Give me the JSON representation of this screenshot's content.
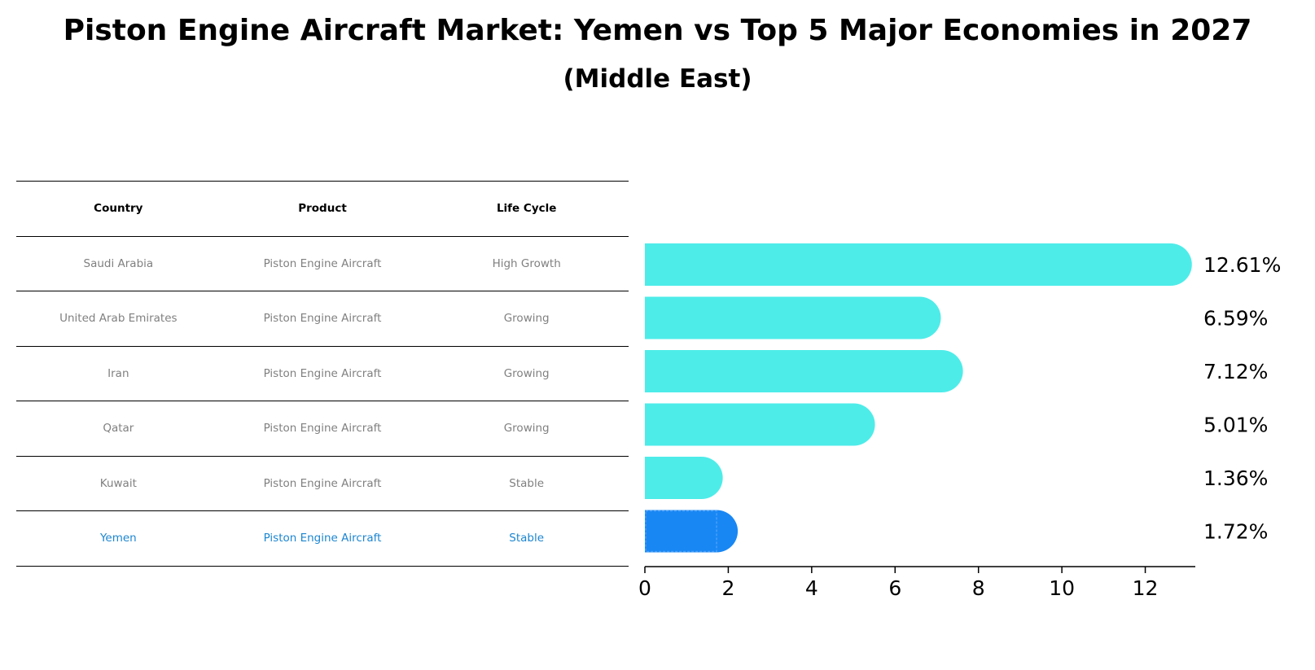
{
  "title": "Piston Engine Aircraft Market: Yemen vs Top 5 Major Economies in 2027",
  "subtitle": "(Middle East)",
  "table": {
    "headers": [
      "Country",
      "Product",
      "Life Cycle"
    ],
    "rows": [
      [
        "Saudi Arabia",
        "Piston Engine Aircraft",
        "High Growth"
      ],
      [
        "United Arab Emirates",
        "Piston Engine Aircraft",
        "Growing"
      ],
      [
        "Iran",
        "Piston Engine Aircraft",
        "Growing"
      ],
      [
        "Qatar",
        "Piston Engine Aircraft",
        "Growing"
      ],
      [
        "Kuwait",
        "Piston Engine Aircraft",
        "Stable"
      ],
      [
        "Yemen",
        "Piston Engine Aircraft",
        "Stable"
      ]
    ],
    "highlight_row": "Yemen"
  },
  "colors": {
    "bar": "#4dece9",
    "highlight_bar": "#1887f4",
    "highlight_text": "#1c86d1",
    "muted_text": "#808080"
  },
  "chart_data": {
    "type": "bar",
    "orientation": "horizontal",
    "categories": [
      "Saudi Arabia",
      "United Arab Emirates",
      "Iran",
      "Qatar",
      "Kuwait",
      "Yemen"
    ],
    "values": [
      12.61,
      6.59,
      7.12,
      5.01,
      1.36,
      1.72
    ],
    "data_labels": [
      "12.61%",
      "6.59%",
      "7.12%",
      "5.01%",
      "1.36%",
      "1.72%"
    ],
    "highlight": "Yemen",
    "xlim": [
      0,
      13.2
    ],
    "xticks": [
      0,
      2,
      4,
      6,
      8,
      10,
      12
    ],
    "xlabel": "",
    "ylabel": "",
    "grid": false
  }
}
